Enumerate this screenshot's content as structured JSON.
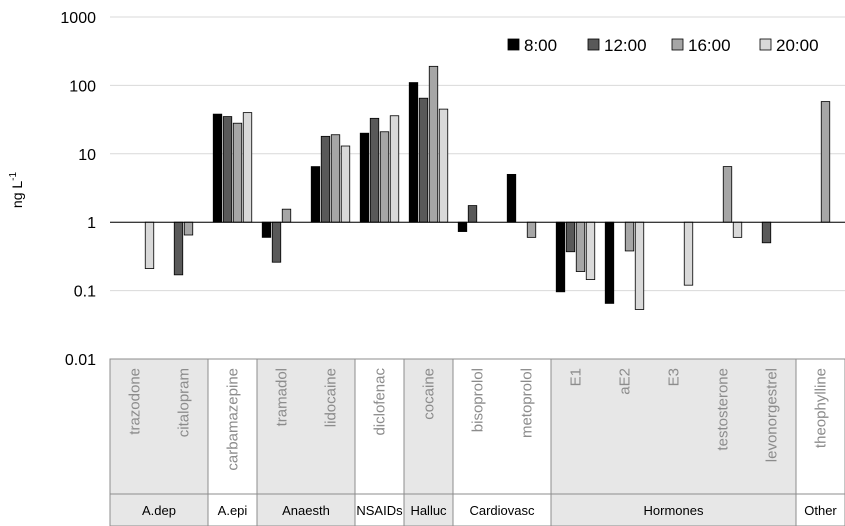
{
  "chart_data": {
    "type": "bar",
    "ylabel_base": "ng L",
    "ylabel_exp": "-1",
    "yscale": "log",
    "ylim": [
      0.01,
      1000
    ],
    "yticks": [
      "1000",
      "100",
      "10",
      "1",
      "0.1",
      "0.01"
    ],
    "grid": true,
    "legend_position": "top-right",
    "series": [
      {
        "name": "8:00",
        "color": "#000000"
      },
      {
        "name": "12:00",
        "color": "#595959"
      },
      {
        "name": "16:00",
        "color": "#a6a6a6"
      },
      {
        "name": "20:00",
        "color": "#d9d9d9"
      }
    ],
    "categories": [
      "trazodone",
      "citalopram",
      "carbamazepine",
      "tramadol",
      "lidocaine",
      "diclofenac",
      "cocaine",
      "bisoprolol",
      "metoprolol",
      "E1",
      "aE2",
      "E3",
      "testosterone",
      "levonorgestrel",
      "theophylline"
    ],
    "values": [
      [
        null,
        null,
        null,
        0.21
      ],
      [
        null,
        0.17,
        0.65,
        null
      ],
      [
        38,
        35,
        28,
        40
      ],
      [
        0.6,
        0.26,
        1.55,
        null
      ],
      [
        6.5,
        18,
        19,
        13
      ],
      [
        20,
        33,
        21,
        36
      ],
      [
        110,
        65,
        190,
        45
      ],
      [
        0.73,
        1.75,
        null,
        null
      ],
      [
        5.0,
        null,
        0.6,
        null
      ],
      [
        0.096,
        0.37,
        0.19,
        0.145
      ],
      [
        0.065,
        null,
        0.38,
        0.053
      ],
      [
        null,
        null,
        null,
        0.12
      ],
      [
        null,
        null,
        6.5,
        0.6
      ],
      [
        null,
        0.5,
        null,
        null
      ],
      [
        null,
        null,
        58,
        null
      ]
    ],
    "groups": [
      {
        "name": "A.dep",
        "items": [
          "trazodone",
          "citalopram"
        ],
        "shade": "#e7e7e7"
      },
      {
        "name": "A.epi",
        "items": [
          "carbamazepine"
        ],
        "shade": "#ffffff"
      },
      {
        "name": "Anaesth",
        "items": [
          "tramadol",
          "lidocaine"
        ],
        "shade": "#e7e7e7"
      },
      {
        "name": "NSAIDs",
        "items": [
          "diclofenac"
        ],
        "shade": "#ffffff"
      },
      {
        "name": "Halluc",
        "items": [
          "cocaine"
        ],
        "shade": "#e7e7e7"
      },
      {
        "name": "Cardiovasc",
        "items": [
          "bisoprolol",
          "metoprolol"
        ],
        "shade": "#ffffff"
      },
      {
        "name": "Hormones",
        "items": [
          "E1",
          "aE2",
          "E3",
          "testosterone",
          "levonorgestrel"
        ],
        "shade": "#e7e7e7"
      },
      {
        "name": "Other",
        "items": [
          "theophylline"
        ],
        "shade": "#ffffff"
      }
    ]
  }
}
